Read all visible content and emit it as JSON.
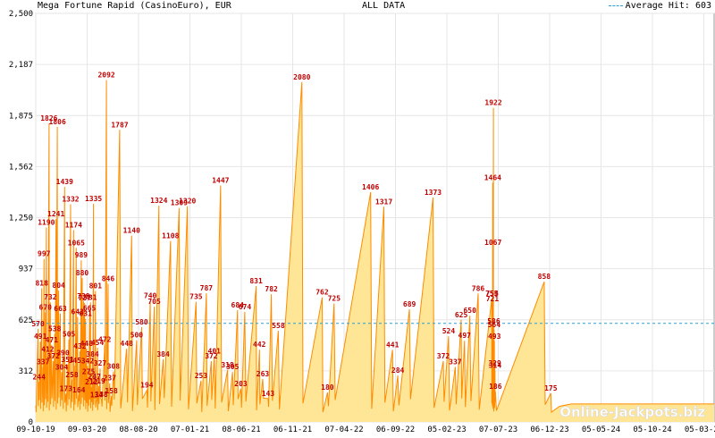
{
  "header": {
    "title": "Mega Fortune Rapid (CasinoEuro), EUR",
    "range": "ALL DATA",
    "average_label": "Average Hit: 603"
  },
  "watermark": "Online-Jackpots.biz",
  "colors": {
    "area_fill": "#ffe596",
    "line": "#ff8c00",
    "average_line": "#2a9fd6",
    "label": "#c00000",
    "grid": "#e6e6e6"
  },
  "chart_data": {
    "type": "area",
    "title": "Mega Fortune Rapid (CasinoEuro), EUR",
    "xlabel": "",
    "ylabel": "",
    "ylim": [
      0,
      2500
    ],
    "yticks": [
      "0",
      "312",
      "625",
      "937",
      "1,250",
      "1,562",
      "1,875",
      "2,187",
      "2,500"
    ],
    "xticks": [
      "09-10-19",
      "09-03-20",
      "08-08-20",
      "07-01-21",
      "08-06-21",
      "06-11-21",
      "07-04-22",
      "06-09-22",
      "05-02-23",
      "07-07-23",
      "06-12-23",
      "05-05-24",
      "05-10-24",
      "05-03-25"
    ],
    "xlim": [
      "2019-09-10",
      "2025-04-15"
    ],
    "grid": true,
    "average": 603,
    "labeled_peaks": [
      {
        "date": "2019-09-17",
        "value": 570
      },
      {
        "date": "2019-09-20",
        "value": 244
      },
      {
        "date": "2019-09-24",
        "value": 491
      },
      {
        "date": "2019-09-28",
        "value": 818
      },
      {
        "date": "2019-10-02",
        "value": 337
      },
      {
        "date": "2019-10-05",
        "value": 997
      },
      {
        "date": "2019-10-09",
        "value": 670
      },
      {
        "date": "2019-10-12",
        "value": 1190
      },
      {
        "date": "2019-10-16",
        "value": 412
      },
      {
        "date": "2019-10-20",
        "value": 1826
      },
      {
        "date": "2019-10-24",
        "value": 732
      },
      {
        "date": "2019-10-28",
        "value": 471
      },
      {
        "date": "2019-11-02",
        "value": 372
      },
      {
        "date": "2019-11-06",
        "value": 538
      },
      {
        "date": "2019-11-10",
        "value": 1241
      },
      {
        "date": "2019-11-14",
        "value": 1806
      },
      {
        "date": "2019-11-18",
        "value": 804
      },
      {
        "date": "2019-11-23",
        "value": 663
      },
      {
        "date": "2019-11-27",
        "value": 304
      },
      {
        "date": "2019-12-01",
        "value": 390
      },
      {
        "date": "2019-12-06",
        "value": 1439
      },
      {
        "date": "2019-12-10",
        "value": 173
      },
      {
        "date": "2019-12-15",
        "value": 351
      },
      {
        "date": "2019-12-19",
        "value": 505
      },
      {
        "date": "2019-12-24",
        "value": 1332
      },
      {
        "date": "2019-12-28",
        "value": 258
      },
      {
        "date": "2020-01-02",
        "value": 1174
      },
      {
        "date": "2020-01-06",
        "value": 345
      },
      {
        "date": "2020-01-10",
        "value": 1065
      },
      {
        "date": "2020-01-14",
        "value": 643
      },
      {
        "date": "2020-01-18",
        "value": 164
      },
      {
        "date": "2020-01-21",
        "value": 432
      },
      {
        "date": "2020-01-25",
        "value": 989
      },
      {
        "date": "2020-01-28",
        "value": 880
      },
      {
        "date": "2020-02-01",
        "value": 739
      },
      {
        "date": "2020-02-04",
        "value": 727
      },
      {
        "date": "2020-02-07",
        "value": 631
      },
      {
        "date": "2020-02-10",
        "value": 448
      },
      {
        "date": "2020-02-13",
        "value": 342
      },
      {
        "date": "2020-02-16",
        "value": 275
      },
      {
        "date": "2020-02-19",
        "value": 665
      },
      {
        "date": "2020-02-22",
        "value": 731
      },
      {
        "date": "2020-02-25",
        "value": 212
      },
      {
        "date": "2020-02-28",
        "value": 384
      },
      {
        "date": "2020-03-02",
        "value": 1335
      },
      {
        "date": "2020-03-05",
        "value": 247
      },
      {
        "date": "2020-03-08",
        "value": 801
      },
      {
        "date": "2020-03-11",
        "value": 134
      },
      {
        "date": "2020-03-14",
        "value": 454
      },
      {
        "date": "2020-03-18",
        "value": 219
      },
      {
        "date": "2020-03-22",
        "value": 327
      },
      {
        "date": "2020-03-26",
        "value": 138
      },
      {
        "date": "2020-04-05",
        "value": 472
      },
      {
        "date": "2020-04-10",
        "value": 2092
      },
      {
        "date": "2020-04-15",
        "value": 846
      },
      {
        "date": "2020-04-20",
        "value": 237
      },
      {
        "date": "2020-04-25",
        "value": 158
      },
      {
        "date": "2020-05-01",
        "value": 308
      },
      {
        "date": "2020-05-20",
        "value": 1787
      },
      {
        "date": "2020-06-10",
        "value": 448
      },
      {
        "date": "2020-06-25",
        "value": 1140
      },
      {
        "date": "2020-07-10",
        "value": 500
      },
      {
        "date": "2020-07-25",
        "value": 580
      },
      {
        "date": "2020-08-10",
        "value": 194
      },
      {
        "date": "2020-08-20",
        "value": 740
      },
      {
        "date": "2020-09-01",
        "value": 705
      },
      {
        "date": "2020-09-15",
        "value": 1324
      },
      {
        "date": "2020-09-28",
        "value": 384
      },
      {
        "date": "2020-10-20",
        "value": 1108
      },
      {
        "date": "2020-11-15",
        "value": 1309
      },
      {
        "date": "2020-12-10",
        "value": 1320
      },
      {
        "date": "2021-01-05",
        "value": 735
      },
      {
        "date": "2021-01-20",
        "value": 253
      },
      {
        "date": "2021-02-05",
        "value": 787
      },
      {
        "date": "2021-02-20",
        "value": 372
      },
      {
        "date": "2021-03-01",
        "value": 401
      },
      {
        "date": "2021-03-20",
        "value": 1447
      },
      {
        "date": "2021-04-10",
        "value": 318
      },
      {
        "date": "2021-04-25",
        "value": 305
      },
      {
        "date": "2021-05-10",
        "value": 684
      },
      {
        "date": "2021-05-20",
        "value": 203
      },
      {
        "date": "2021-06-01",
        "value": 674
      },
      {
        "date": "2021-07-05",
        "value": 831
      },
      {
        "date": "2021-07-15",
        "value": 442
      },
      {
        "date": "2021-07-25",
        "value": 263
      },
      {
        "date": "2021-08-10",
        "value": 143
      },
      {
        "date": "2021-08-20",
        "value": 782
      },
      {
        "date": "2021-09-10",
        "value": 558
      },
      {
        "date": "2021-11-20",
        "value": 2080
      },
      {
        "date": "2022-01-20",
        "value": 762
      },
      {
        "date": "2022-02-05",
        "value": 180
      },
      {
        "date": "2022-02-25",
        "value": 725
      },
      {
        "date": "2022-06-15",
        "value": 1406
      },
      {
        "date": "2022-07-25",
        "value": 1317
      },
      {
        "date": "2022-08-20",
        "value": 441
      },
      {
        "date": "2022-09-05",
        "value": 284
      },
      {
        "date": "2022-10-10",
        "value": 689
      },
      {
        "date": "2022-12-20",
        "value": 1373
      },
      {
        "date": "2023-01-20",
        "value": 372
      },
      {
        "date": "2023-02-05",
        "value": 524
      },
      {
        "date": "2023-02-25",
        "value": 337
      },
      {
        "date": "2023-03-15",
        "value": 625
      },
      {
        "date": "2023-03-25",
        "value": 497
      },
      {
        "date": "2023-04-10",
        "value": 650
      },
      {
        "date": "2023-05-05",
        "value": 786
      },
      {
        "date": "2023-06-15",
        "value": 755
      },
      {
        "date": "2023-06-16",
        "value": 754
      },
      {
        "date": "2023-06-17",
        "value": 721
      },
      {
        "date": "2023-06-18",
        "value": 1464
      },
      {
        "date": "2023-06-19",
        "value": 1067
      },
      {
        "date": "2023-06-20",
        "value": 1922
      },
      {
        "date": "2023-06-21",
        "value": 586
      },
      {
        "date": "2023-06-22",
        "value": 564
      },
      {
        "date": "2023-06-23",
        "value": 493
      },
      {
        "date": "2023-06-24",
        "value": 329
      },
      {
        "date": "2023-06-25",
        "value": 314
      },
      {
        "date": "2023-06-26",
        "value": 186
      },
      {
        "date": "2023-11-20",
        "value": 858
      },
      {
        "date": "2023-12-10",
        "value": 175
      }
    ]
  }
}
